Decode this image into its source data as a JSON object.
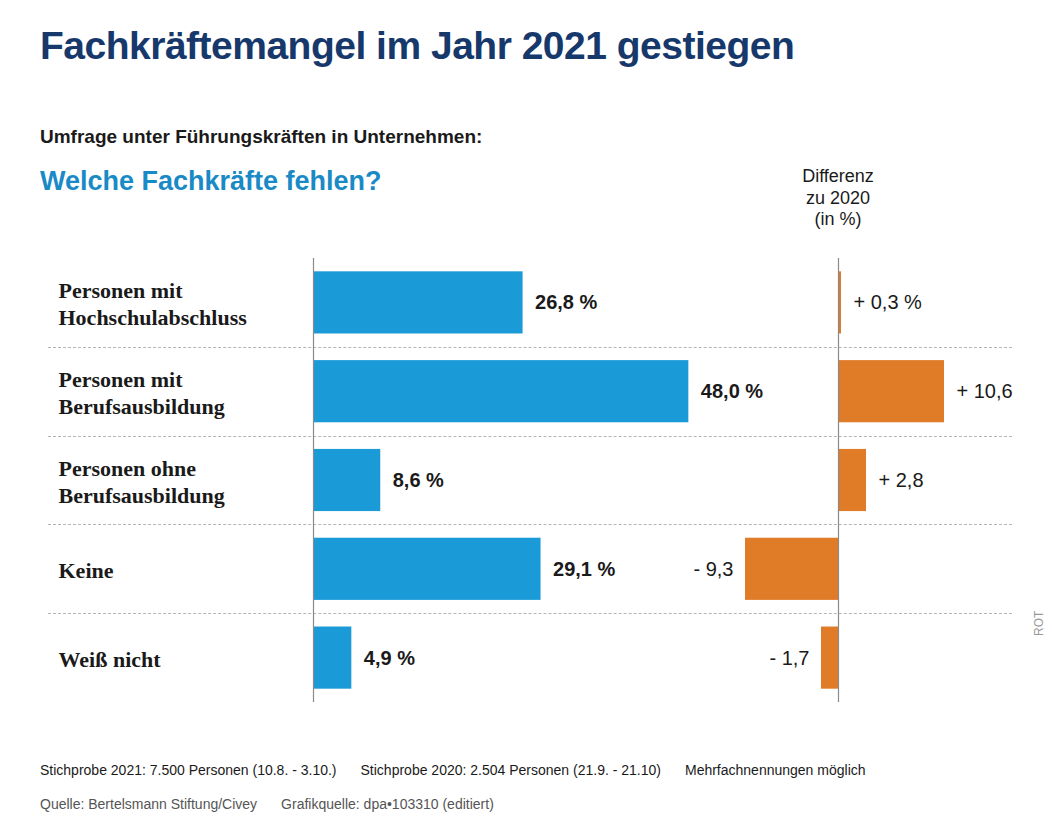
{
  "chart_data": [
    {
      "type": "bar",
      "orientation": "horizontal",
      "title": "Fachkräftemangel im Jahr 2021 gestiegen",
      "subtitle": "Umfrage unter Führungskräften in Unternehmen:",
      "heading": "Welche Fachkräfte fehlen?",
      "categories": [
        "Personen mit Hochschulabschluss",
        "Personen mit Berufsausbildung",
        "Personen ohne Berufsausbildung",
        "Keine",
        "Weiß nicht"
      ],
      "values": [
        26.8,
        48.0,
        8.6,
        29.1,
        4.9
      ],
      "value_labels": [
        "26,8 %",
        "48,0 %",
        "8,6 %",
        "29,1 %",
        "4,9 %"
      ],
      "color": "#1a9ad6",
      "xlim": [
        0,
        61
      ],
      "data_labels": true,
      "tick_labels": "y",
      "annotations": [
        "Stichprobe 2021: 7.500 Personen (10.8. - 3.10.)",
        "Stichprobe 2020: 2.504 Personen (21.9. - 21.10)",
        "Mehrfachnennungen möglich"
      ],
      "source": [
        "Quelle: Bertelsmann Stiftung/Civey",
        "Grafikquelle: dpa•103310 (editiert)"
      ],
      "credit": "ROT"
    },
    {
      "type": "bar",
      "orientation": "horizontal",
      "title": "Differenz zu 2020 (in %)",
      "categories": [
        "Personen mit Hochschulabschluss",
        "Personen mit Berufsausbildung",
        "Personen ohne Berufsausbildung",
        "Keine",
        "Weiß nicht"
      ],
      "values": [
        0.3,
        10.6,
        2.8,
        -9.3,
        -1.7
      ],
      "value_labels": [
        "+ 0,3 %",
        "+ 10,6",
        "+ 2,8",
        "- 9,3",
        "- 1,7"
      ],
      "color": "#e07b27",
      "xlim": [
        -11,
        11
      ],
      "data_labels": true,
      "tick_labels": false
    }
  ]
}
